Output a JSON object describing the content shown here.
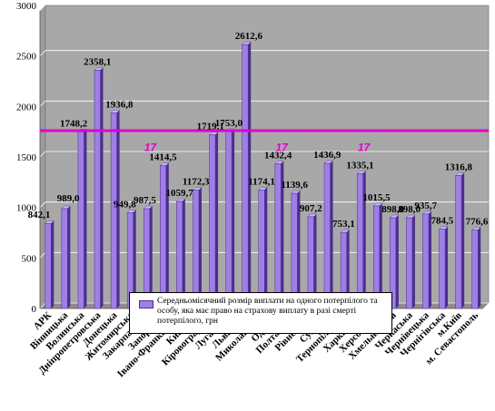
{
  "chart_data": {
    "type": "bar",
    "title": "",
    "ylim": [
      0,
      3000
    ],
    "yticks": [
      0,
      500,
      1000,
      1500,
      2000,
      2500,
      3000
    ],
    "grid": true,
    "categories": [
      "АРК",
      "Вінницька",
      "Волинська",
      "Дніпропетровська",
      "Донецька",
      "Житомирська",
      "Закарпатська",
      "Запорізька",
      "Івано-Франківська",
      "Київська",
      "Кіровоградська",
      "Луганська",
      "Львівська",
      "Миколаївська",
      "Одеська",
      "Полтавська",
      "Рівненська",
      "Сумська",
      "Тернопільська",
      "Харківська",
      "Херсонська",
      "Хмельницька",
      "Черкаська",
      "Чернівецька",
      "Чернігівська",
      "м.Київ",
      "м. Севастополь"
    ],
    "category_labels": [
      "АРК",
      "Вінницька",
      "Волинська",
      "Дніпропетровська",
      "Донецька",
      "Житомирська",
      "Закарпатська",
      "Запорізька",
      "Івано-Франківська",
      "Київська",
      "Кіровоградська",
      "Луганська",
      "Львівська",
      "Миколаївська",
      "Одеська",
      "Полтавська",
      "Рівненська",
      "Сумська",
      "Тернопільська",
      "Харківська",
      "Херсонська",
      "Хмельницька",
      "Черкаська",
      "Чернівецька",
      "Чернігівська",
      "м.Київ",
      "м. Севастополь"
    ],
    "series": [
      {
        "name": "Середньомісячний розмір виплати на одного потерпілого та особу, яка має право на страхову виплату в разі смерті потерпілого, грн",
        "values": [
          842.1,
          989.0,
          1748.2,
          2358.1,
          1936.8,
          949.8,
          987.5,
          1414.5,
          1059.7,
          1172.3,
          1719.1,
          1753.0,
          2612.6,
          1174.1,
          1432.4,
          1139.6,
          907.2,
          1436.9,
          753.1,
          1335.1,
          1015.5,
          898.0,
          898.0,
          935.7,
          784.5,
          1316.8,
          776.6
        ],
        "labels": [
          "842,1",
          "989,0",
          "1748,2",
          "2358,1",
          "1936,8",
          "949,8",
          "987,5",
          "1414,5",
          "1059,7",
          "1172,3",
          "1719,1",
          "1753,0",
          "2612,6",
          "1174,1",
          "1432,4",
          "1139,6",
          "907,2",
          "1436,9",
          "753,1",
          "1335,1",
          "1015,5",
          "898,0",
          "898,0",
          "935,7",
          "784,5",
          "1316,8",
          "776,6"
        ]
      }
    ],
    "reference_line": {
      "value": 1760
    },
    "annotations": [
      "17",
      "17",
      "17"
    ],
    "colors": {
      "bar_face": "#9f7fe6",
      "bar_side": "#4a2f8c",
      "bar_top": "#c8b4f8",
      "reference_line": "#e000d0",
      "annotation": "#e000d0",
      "plot_bg": "#a8a8a8",
      "wall": "#b8b8b8",
      "grid": "#ffffff"
    }
  },
  "legend": {
    "text": "Середньомісячний розмір виплати на одного потерпілого та особу, яка має право на страхову виплату в разі смерті потерпілого, грн"
  }
}
